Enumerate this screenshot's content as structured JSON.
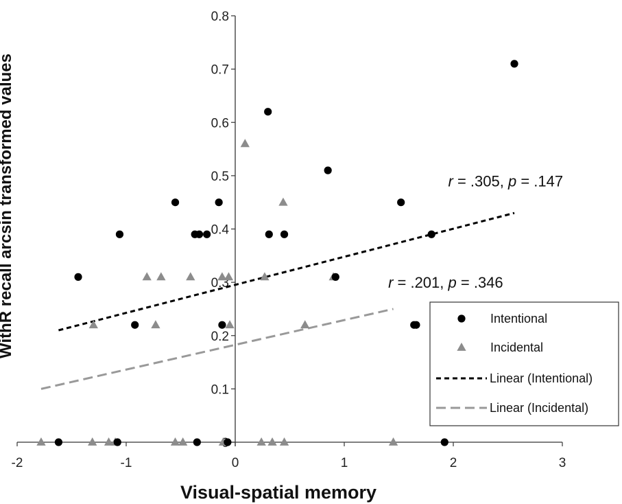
{
  "chart_data": {
    "type": "scatter",
    "xlabel": "Visual-spatial memory",
    "ylabel": "WithR recall arcsin transformed values",
    "xlim": [
      -2,
      3
    ],
    "ylim": [
      0,
      0.8
    ],
    "xticks": [
      "-2",
      "-1",
      "0",
      "1",
      "2",
      "3"
    ],
    "yticks": [
      "0",
      "0.1",
      "0.2",
      "0.3",
      "0.4",
      "0.5",
      "0.6",
      "0.7",
      "0.8"
    ],
    "grid": false,
    "legend_position": "right",
    "series": [
      {
        "name": "Intentional",
        "marker": "circle",
        "color": "#000000",
        "points": [
          [
            2.56,
            0.71
          ],
          [
            0.3,
            0.62
          ],
          [
            0.85,
            0.51
          ],
          [
            -0.55,
            0.45
          ],
          [
            -0.15,
            0.45
          ],
          [
            1.52,
            0.45
          ],
          [
            -1.06,
            0.39
          ],
          [
            -0.37,
            0.39
          ],
          [
            -0.33,
            0.39
          ],
          [
            -0.26,
            0.39
          ],
          [
            0.31,
            0.39
          ],
          [
            0.45,
            0.39
          ],
          [
            1.8,
            0.39
          ],
          [
            -1.44,
            0.31
          ],
          [
            0.92,
            0.31
          ],
          [
            -0.92,
            0.22
          ],
          [
            -0.12,
            0.22
          ],
          [
            1.64,
            0.22
          ],
          [
            1.66,
            0.22
          ],
          [
            -1.62,
            0.0
          ],
          [
            -1.08,
            0.0
          ],
          [
            -0.35,
            0.0
          ],
          [
            -0.07,
            0.0
          ],
          [
            1.92,
            0.0
          ]
        ]
      },
      {
        "name": "Incidental",
        "marker": "triangle",
        "color": "#8c8c8c",
        "points": [
          [
            0.09,
            0.56
          ],
          [
            0.44,
            0.45
          ],
          [
            -0.81,
            0.31
          ],
          [
            -0.68,
            0.31
          ],
          [
            -0.41,
            0.31
          ],
          [
            -0.12,
            0.31
          ],
          [
            -0.06,
            0.31
          ],
          [
            0.27,
            0.31
          ],
          [
            0.9,
            0.31
          ],
          [
            -1.3,
            0.22
          ],
          [
            -0.73,
            0.22
          ],
          [
            -0.05,
            0.22
          ],
          [
            0.64,
            0.22
          ],
          [
            -1.78,
            0.0
          ],
          [
            -1.31,
            0.0
          ],
          [
            -1.16,
            0.0
          ],
          [
            -1.1,
            0.0
          ],
          [
            -0.55,
            0.0
          ],
          [
            -0.48,
            0.0
          ],
          [
            -0.11,
            0.0
          ],
          [
            0.24,
            0.0
          ],
          [
            0.34,
            0.0
          ],
          [
            0.45,
            0.0
          ],
          [
            1.45,
            0.0
          ]
        ]
      },
      {
        "name": "Linear (Intentional)",
        "type": "line",
        "style": "dashed",
        "color": "#000000",
        "x": [
          -1.62,
          2.56
        ],
        "y": [
          0.21,
          0.43
        ]
      },
      {
        "name": "Linear (Incidental)",
        "type": "line",
        "style": "dashed",
        "color": "#999999",
        "x": [
          -1.78,
          1.45
        ],
        "y": [
          0.1,
          0.25
        ]
      }
    ],
    "annotations": [
      {
        "r": ".305",
        "p": ".147",
        "x": 2.48,
        "y": 0.49
      },
      {
        "r": ".201",
        "p": ".346",
        "x": 1.93,
        "y": 0.3
      }
    ]
  }
}
